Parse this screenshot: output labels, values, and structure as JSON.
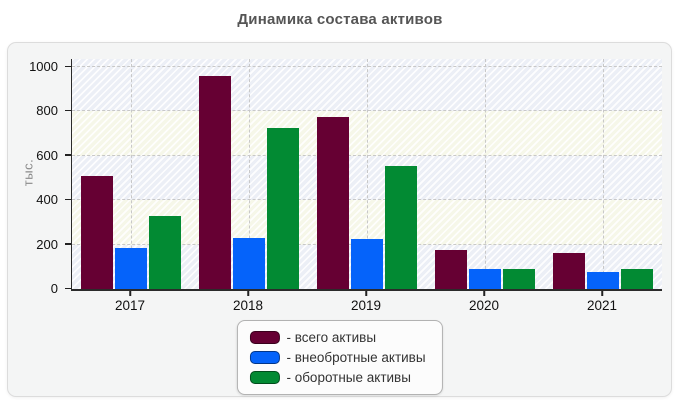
{
  "title": "Динамика состава активов",
  "chart_data": {
    "type": "bar",
    "title": "Динамика состава активов",
    "xlabel": "",
    "ylabel": "тыс.",
    "categories": [
      "2017",
      "2018",
      "2019",
      "2020",
      "2021"
    ],
    "series": [
      {
        "name": "всего активы",
        "color": "#660033",
        "values": [
          510,
          960,
          775,
          175,
          160
        ]
      },
      {
        "name": "внеобротные активы",
        "color": "#0563fa",
        "values": [
          185,
          230,
          225,
          90,
          75
        ]
      },
      {
        "name": "оборотные активы",
        "color": "#028a33",
        "values": [
          330,
          725,
          555,
          90,
          90
        ]
      }
    ],
    "ylim": [
      0,
      1000
    ],
    "yticks": [
      0,
      200,
      400,
      600,
      800,
      1000
    ],
    "grid": "dashed",
    "plot_band_colors": [
      "#eceff6",
      "#f6f7e9"
    ],
    "legend_position": "bottom-center"
  },
  "legend": {
    "items": [
      "- всего активы",
      "- внеобротные активы",
      "- оборотные активы"
    ]
  }
}
